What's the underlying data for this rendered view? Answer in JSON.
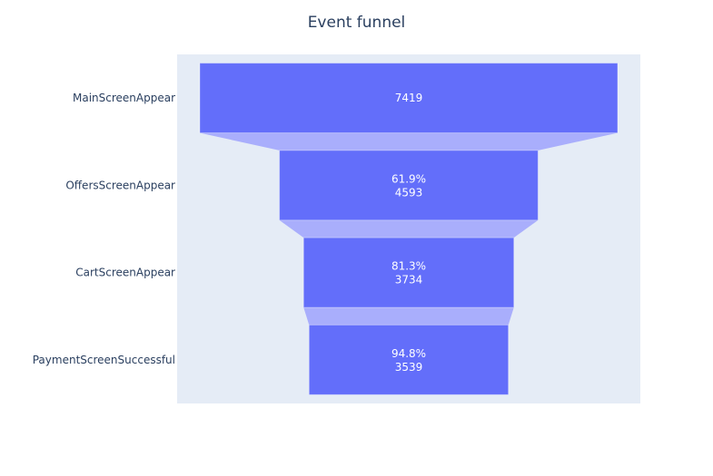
{
  "chart_data": {
    "type": "funnel",
    "title": "Event funnel",
    "categories": [
      "MainScreenAppear",
      "OffersScreenAppear",
      "CartScreenAppear",
      "PaymentScreenSuccessful"
    ],
    "values": [
      7419,
      4593,
      3734,
      3539
    ],
    "percent_previous": [
      "",
      "61.9%",
      "81.3%",
      "94.8%"
    ],
    "colors": {
      "bar": "#636efa",
      "connector": "#a9aefc",
      "plot_bg": "#e5ecf6",
      "text": "#2a3f5f"
    }
  }
}
